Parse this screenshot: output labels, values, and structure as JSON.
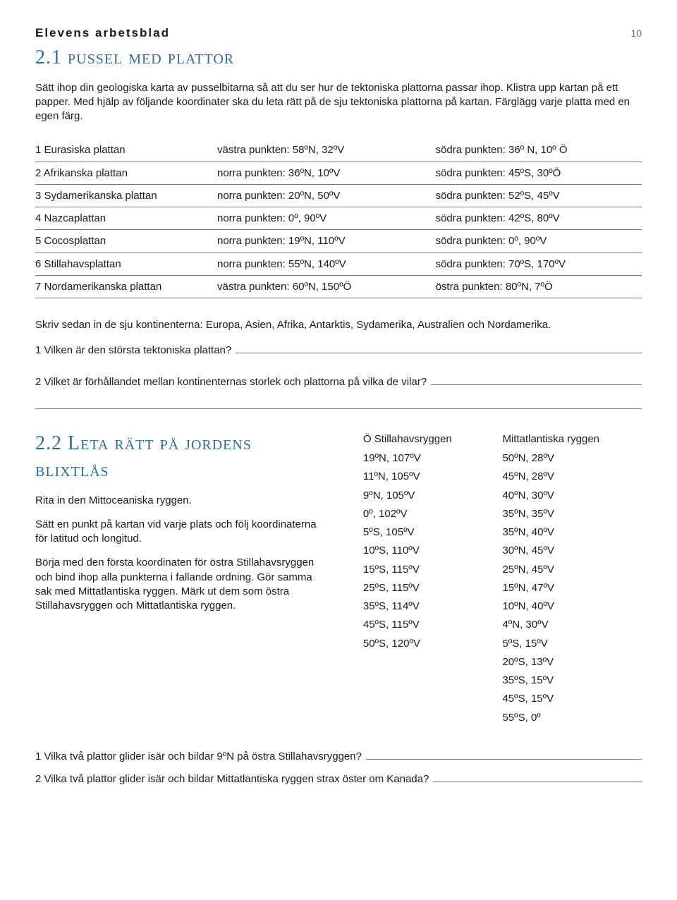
{
  "header": {
    "label": "Elevens arbetsblad",
    "page_number": "10"
  },
  "section1": {
    "title_num": "2.1",
    "title_text": "pussel med plattor",
    "intro1": "Sätt ihop din geologiska karta av pusselbitarna så att du ser hur de tektoniska plattorna passar ihop. Klistra upp kartan på ett papper. Med hjälp av följande koordinater ska du leta rätt på de sju tektoniska plattorna på kartan. Färglägg varje platta med en egen färg.",
    "plates": [
      {
        "name": "1 Eurasiska plattan",
        "a": "västra punkten: 58ºN, 32ºV",
        "b": "södra punkten: 36º N, 10º Ö"
      },
      {
        "name": "2 Afrikanska plattan",
        "a": "norra punkten: 36ºN, 10ºV",
        "b": "södra punkten: 45ºS, 30ºÖ"
      },
      {
        "name": "3 Sydamerikanska plattan",
        "a": "norra punkten: 20ºN, 50ºV",
        "b": "södra punkten: 52ºS, 45ºV"
      },
      {
        "name": "4 Nazcaplattan",
        "a": "norra punkten: 0º, 90ºV",
        "b": "södra punkten: 42ºS, 80ºV"
      },
      {
        "name": "5 Cocosplattan",
        "a": "norra punkten: 19ºN, 110ºV",
        "b": "södra punkten: 0º, 90ºV"
      },
      {
        "name": "6 Stillahavsplattan",
        "a": "norra punkten: 55ºN, 140ºV",
        "b": "södra punkten: 70ºS, 170ºV"
      },
      {
        "name": "7 Nordamerikanska plattan",
        "a": "västra punkten: 60ºN, 150ºÖ",
        "b": "östra punkten: 80ºN, 7ºÖ"
      }
    ],
    "after": "Skriv sedan in de sju kontinenterna: Europa, Asien, Afrika, Antarktis, Sydamerika, Australien och Nordamerika.",
    "q1": "1 Vilken är den största tektoniska plattan?",
    "q2": "2 Vilket är förhållandet mellan kontinenternas storlek och plattorna på vilka de vilar?"
  },
  "section2": {
    "title_num": "2.2",
    "title_text": "Leta rätt på jordens blixtlås",
    "p1": "Rita in den Mittoceaniska ryggen.",
    "p2": "Sätt en punkt på kartan vid varje plats och följ koordinaterna för latitud och longitud.",
    "p3": "Börja med den första koordinaten för östra Stillahavsryggen och bind ihop alla punkterna i fallande ordning. Gör samma sak med Mittatlantiska ryggen. Märk ut dem som östra Stillahavsryggen och Mittatlantiska ryggen.",
    "col_head_left": "Ö Stillahavsryggen",
    "col_head_right": "Mittatlantiska ryggen",
    "coords_left": [
      "19ºN, 107ºV",
      "11ºN, 105ºV",
      "9ºN, 105ºV",
      "0º, 102ºV",
      "5ºS, 105ºV",
      "10ºS, 110ºV",
      "15ºS, 115ºV",
      "25ºS, 115ºV",
      "35ºS, 114ºV",
      "45ºS, 115ºV",
      "50ºS, 120ºV"
    ],
    "coords_right": [
      "50ºN, 28ºV",
      "45ºN, 28ºV",
      "40ºN, 30ºV",
      "35ºN, 35ºV",
      "35ºN, 40ºV",
      "30ºN, 45ºV",
      "25ºN, 45ºV",
      "15ºN, 47ºV",
      "10ºN, 40ºV",
      "4ºN, 30ºV",
      "5ºS, 15ºV",
      "20ºS, 13ºV",
      "35ºS, 15ºV",
      "45ºS, 15ºV",
      "55ºS, 0º"
    ]
  },
  "bottom": {
    "q1": "1 Vilka två plattor glider isär och bildar 9ºN på östra Stillahavsryggen?",
    "q2": "2 Vilka två plattor glider isär och bildar Mittatlantiska ryggen strax öster om Kanada?"
  },
  "colors": {
    "heading": "#2f6b99",
    "text": "#1a1a1a",
    "rule": "#777777"
  }
}
